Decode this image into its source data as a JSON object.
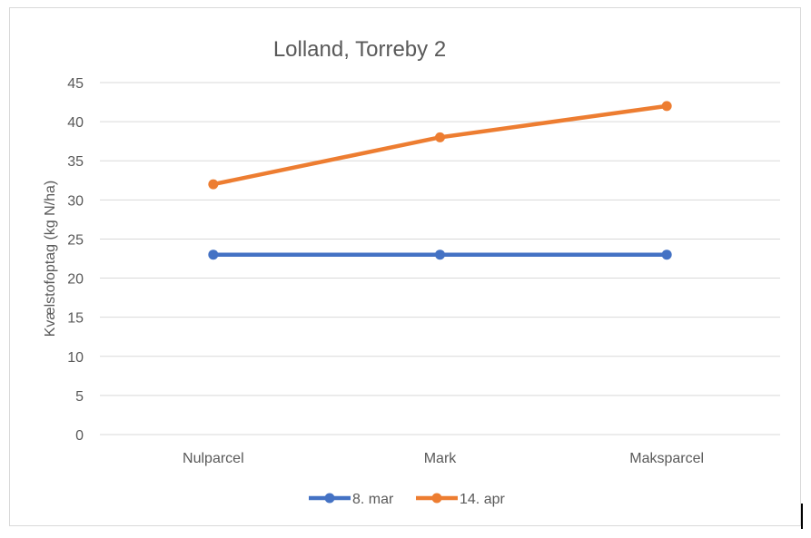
{
  "chart_data": {
    "type": "line",
    "title": "Lolland, Torreby 2",
    "xlabel": "",
    "ylabel": "Kvælstofoptag (kg N/ha)",
    "categories": [
      "Nulparcel",
      "Mark",
      "Maksparcel"
    ],
    "ylim": [
      0,
      45
    ],
    "yticks": [
      0,
      5,
      10,
      15,
      20,
      25,
      30,
      35,
      40,
      45
    ],
    "grid": true,
    "legend": "bottom",
    "series": [
      {
        "name": "8. mar",
        "values": [
          23,
          23,
          23
        ],
        "color": "#4472c4"
      },
      {
        "name": "14. apr",
        "values": [
          32,
          38,
          42
        ],
        "color": "#ed7d31"
      }
    ]
  }
}
